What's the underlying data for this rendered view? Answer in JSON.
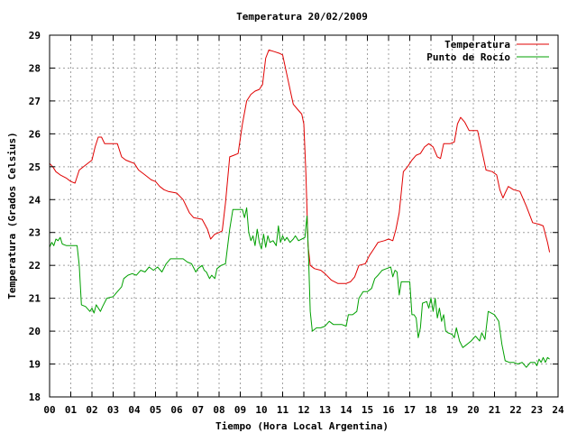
{
  "chart_data": {
    "type": "line",
    "title": "Temperatura 20/02/2009",
    "xlabel": "Tiempo (Hora Local Argentina)",
    "ylabel": "Temperatura (Grados Celsius)",
    "xlim": [
      0,
      24
    ],
    "ylim": [
      18,
      29
    ],
    "grid": true,
    "legend_position": "top-right",
    "x_ticks": [
      "00",
      "01",
      "02",
      "03",
      "04",
      "05",
      "06",
      "07",
      "08",
      "09",
      "10",
      "11",
      "12",
      "13",
      "14",
      "15",
      "16",
      "17",
      "18",
      "19",
      "20",
      "21",
      "22",
      "23",
      "24"
    ],
    "y_ticks": [
      "18",
      "19",
      "20",
      "21",
      "22",
      "23",
      "24",
      "25",
      "26",
      "27",
      "28",
      "29"
    ],
    "series": [
      {
        "name": "Temperatura",
        "color": "#e00000",
        "points": [
          [
            0.0,
            25.1
          ],
          [
            0.15,
            25.0
          ],
          [
            0.3,
            24.85
          ],
          [
            0.5,
            24.75
          ],
          [
            0.8,
            24.65
          ],
          [
            1.0,
            24.55
          ],
          [
            1.2,
            24.5
          ],
          [
            1.4,
            24.9
          ],
          [
            1.7,
            25.05
          ],
          [
            2.0,
            25.2
          ],
          [
            2.15,
            25.6
          ],
          [
            2.3,
            25.9
          ],
          [
            2.45,
            25.9
          ],
          [
            2.6,
            25.7
          ],
          [
            3.0,
            25.7
          ],
          [
            3.2,
            25.7
          ],
          [
            3.4,
            25.3
          ],
          [
            3.6,
            25.2
          ],
          [
            3.8,
            25.15
          ],
          [
            4.0,
            25.1
          ],
          [
            4.2,
            24.9
          ],
          [
            4.5,
            24.75
          ],
          [
            4.8,
            24.6
          ],
          [
            5.0,
            24.55
          ],
          [
            5.2,
            24.4
          ],
          [
            5.4,
            24.3
          ],
          [
            5.6,
            24.25
          ],
          [
            6.0,
            24.2
          ],
          [
            6.3,
            24.0
          ],
          [
            6.6,
            23.6
          ],
          [
            6.8,
            23.45
          ],
          [
            7.2,
            23.4
          ],
          [
            7.45,
            23.1
          ],
          [
            7.6,
            22.8
          ],
          [
            7.8,
            22.95
          ],
          [
            8.0,
            23.0
          ],
          [
            8.15,
            23.05
          ],
          [
            8.3,
            23.9
          ],
          [
            8.5,
            25.3
          ],
          [
            8.7,
            25.35
          ],
          [
            8.9,
            25.4
          ],
          [
            9.1,
            26.3
          ],
          [
            9.3,
            27.0
          ],
          [
            9.5,
            27.2
          ],
          [
            9.7,
            27.3
          ],
          [
            9.9,
            27.35
          ],
          [
            10.05,
            27.5
          ],
          [
            10.2,
            28.3
          ],
          [
            10.35,
            28.55
          ],
          [
            10.6,
            28.5
          ],
          [
            10.85,
            28.45
          ],
          [
            11.0,
            28.4
          ],
          [
            11.2,
            27.8
          ],
          [
            11.4,
            27.2
          ],
          [
            11.5,
            26.9
          ],
          [
            11.7,
            26.75
          ],
          [
            11.9,
            26.6
          ],
          [
            12.0,
            26.3
          ],
          [
            12.1,
            24.8
          ],
          [
            12.2,
            22.6
          ],
          [
            12.3,
            22.0
          ],
          [
            12.5,
            21.9
          ],
          [
            12.8,
            21.85
          ],
          [
            13.0,
            21.75
          ],
          [
            13.3,
            21.55
          ],
          [
            13.6,
            21.45
          ],
          [
            14.0,
            21.45
          ],
          [
            14.2,
            21.5
          ],
          [
            14.4,
            21.65
          ],
          [
            14.6,
            22.0
          ],
          [
            14.9,
            22.05
          ],
          [
            15.1,
            22.3
          ],
          [
            15.3,
            22.5
          ],
          [
            15.5,
            22.7
          ],
          [
            15.8,
            22.75
          ],
          [
            16.0,
            22.8
          ],
          [
            16.2,
            22.75
          ],
          [
            16.35,
            23.1
          ],
          [
            16.5,
            23.6
          ],
          [
            16.7,
            24.85
          ],
          [
            16.9,
            25.0
          ],
          [
            17.1,
            25.2
          ],
          [
            17.3,
            25.35
          ],
          [
            17.5,
            25.4
          ],
          [
            17.7,
            25.6
          ],
          [
            17.9,
            25.7
          ],
          [
            18.1,
            25.6
          ],
          [
            18.3,
            25.3
          ],
          [
            18.45,
            25.25
          ],
          [
            18.6,
            25.7
          ],
          [
            18.9,
            25.7
          ],
          [
            19.1,
            25.75
          ],
          [
            19.25,
            26.3
          ],
          [
            19.4,
            26.5
          ],
          [
            19.6,
            26.35
          ],
          [
            19.8,
            26.1
          ],
          [
            20.2,
            26.1
          ],
          [
            20.4,
            25.5
          ],
          [
            20.6,
            24.9
          ],
          [
            20.9,
            24.85
          ],
          [
            21.1,
            24.75
          ],
          [
            21.25,
            24.3
          ],
          [
            21.4,
            24.05
          ],
          [
            21.5,
            24.2
          ],
          [
            21.65,
            24.4
          ],
          [
            21.9,
            24.3
          ],
          [
            22.2,
            24.25
          ],
          [
            22.5,
            23.8
          ],
          [
            22.8,
            23.3
          ],
          [
            23.1,
            23.25
          ],
          [
            23.3,
            23.2
          ],
          [
            23.5,
            22.7
          ],
          [
            23.6,
            22.4
          ]
        ]
      },
      {
        "name": "Punto de Rocío",
        "color": "#00a000",
        "points": [
          [
            0.0,
            22.55
          ],
          [
            0.1,
            22.7
          ],
          [
            0.2,
            22.6
          ],
          [
            0.3,
            22.8
          ],
          [
            0.4,
            22.75
          ],
          [
            0.5,
            22.85
          ],
          [
            0.6,
            22.65
          ],
          [
            0.8,
            22.6
          ],
          [
            1.0,
            22.6
          ],
          [
            1.3,
            22.6
          ],
          [
            1.4,
            22.0
          ],
          [
            1.5,
            20.8
          ],
          [
            1.7,
            20.75
          ],
          [
            1.9,
            20.6
          ],
          [
            2.0,
            20.7
          ],
          [
            2.1,
            20.55
          ],
          [
            2.2,
            20.8
          ],
          [
            2.4,
            20.6
          ],
          [
            2.5,
            20.75
          ],
          [
            2.7,
            21.0
          ],
          [
            3.0,
            21.05
          ],
          [
            3.2,
            21.2
          ],
          [
            3.4,
            21.35
          ],
          [
            3.5,
            21.6
          ],
          [
            3.7,
            21.7
          ],
          [
            3.9,
            21.75
          ],
          [
            4.1,
            21.7
          ],
          [
            4.3,
            21.85
          ],
          [
            4.5,
            21.8
          ],
          [
            4.7,
            21.95
          ],
          [
            4.9,
            21.85
          ],
          [
            5.1,
            21.95
          ],
          [
            5.3,
            21.8
          ],
          [
            5.5,
            22.05
          ],
          [
            5.7,
            22.2
          ],
          [
            5.9,
            22.2
          ],
          [
            6.1,
            22.2
          ],
          [
            6.3,
            22.2
          ],
          [
            6.5,
            22.1
          ],
          [
            6.7,
            22.05
          ],
          [
            6.9,
            21.8
          ],
          [
            7.0,
            21.9
          ],
          [
            7.2,
            22.0
          ],
          [
            7.3,
            21.85
          ],
          [
            7.4,
            21.8
          ],
          [
            7.55,
            21.6
          ],
          [
            7.65,
            21.7
          ],
          [
            7.8,
            21.6
          ],
          [
            7.9,
            21.9
          ],
          [
            8.1,
            22.0
          ],
          [
            8.3,
            22.05
          ],
          [
            8.5,
            23.1
          ],
          [
            8.65,
            23.7
          ],
          [
            8.9,
            23.7
          ],
          [
            9.1,
            23.7
          ],
          [
            9.2,
            23.45
          ],
          [
            9.3,
            23.75
          ],
          [
            9.4,
            23.0
          ],
          [
            9.5,
            22.75
          ],
          [
            9.6,
            22.9
          ],
          [
            9.7,
            22.6
          ],
          [
            9.8,
            23.1
          ],
          [
            9.9,
            22.7
          ],
          [
            10.0,
            22.5
          ],
          [
            10.1,
            22.95
          ],
          [
            10.2,
            22.55
          ],
          [
            10.3,
            22.9
          ],
          [
            10.4,
            22.7
          ],
          [
            10.55,
            22.75
          ],
          [
            10.7,
            22.6
          ],
          [
            10.8,
            23.2
          ],
          [
            10.9,
            22.7
          ],
          [
            11.0,
            22.9
          ],
          [
            11.1,
            22.75
          ],
          [
            11.2,
            22.85
          ],
          [
            11.35,
            22.7
          ],
          [
            11.5,
            22.8
          ],
          [
            11.6,
            22.9
          ],
          [
            11.75,
            22.75
          ],
          [
            11.9,
            22.8
          ],
          [
            12.05,
            22.85
          ],
          [
            12.15,
            23.5
          ],
          [
            12.22,
            22.3
          ],
          [
            12.3,
            20.6
          ],
          [
            12.4,
            20.0
          ],
          [
            12.6,
            20.1
          ],
          [
            12.8,
            20.1
          ],
          [
            13.0,
            20.15
          ],
          [
            13.2,
            20.3
          ],
          [
            13.4,
            20.2
          ],
          [
            13.6,
            20.2
          ],
          [
            13.8,
            20.2
          ],
          [
            14.0,
            20.15
          ],
          [
            14.1,
            20.5
          ],
          [
            14.3,
            20.5
          ],
          [
            14.5,
            20.6
          ],
          [
            14.6,
            21.0
          ],
          [
            14.8,
            21.2
          ],
          [
            15.0,
            21.2
          ],
          [
            15.2,
            21.3
          ],
          [
            15.35,
            21.6
          ],
          [
            15.5,
            21.7
          ],
          [
            15.7,
            21.85
          ],
          [
            15.9,
            21.9
          ],
          [
            16.1,
            21.95
          ],
          [
            16.2,
            21.65
          ],
          [
            16.3,
            21.85
          ],
          [
            16.4,
            21.8
          ],
          [
            16.5,
            21.1
          ],
          [
            16.6,
            21.5
          ],
          [
            16.8,
            21.5
          ],
          [
            17.0,
            21.5
          ],
          [
            17.1,
            20.5
          ],
          [
            17.2,
            20.5
          ],
          [
            17.3,
            20.4
          ],
          [
            17.4,
            19.8
          ],
          [
            17.5,
            20.1
          ],
          [
            17.6,
            20.85
          ],
          [
            17.8,
            20.9
          ],
          [
            17.9,
            20.7
          ],
          [
            18.0,
            21.0
          ],
          [
            18.1,
            20.6
          ],
          [
            18.2,
            21.0
          ],
          [
            18.3,
            20.4
          ],
          [
            18.4,
            20.7
          ],
          [
            18.5,
            20.3
          ],
          [
            18.6,
            20.5
          ],
          [
            18.7,
            20.0
          ],
          [
            18.8,
            19.95
          ],
          [
            19.0,
            19.9
          ],
          [
            19.1,
            19.8
          ],
          [
            19.2,
            20.1
          ],
          [
            19.35,
            19.7
          ],
          [
            19.5,
            19.5
          ],
          [
            19.7,
            19.6
          ],
          [
            19.9,
            19.7
          ],
          [
            20.1,
            19.85
          ],
          [
            20.3,
            19.7
          ],
          [
            20.4,
            19.95
          ],
          [
            20.55,
            19.75
          ],
          [
            20.7,
            20.6
          ],
          [
            21.0,
            20.5
          ],
          [
            21.2,
            20.3
          ],
          [
            21.35,
            19.6
          ],
          [
            21.5,
            19.1
          ],
          [
            21.7,
            19.05
          ],
          [
            21.9,
            19.05
          ],
          [
            22.1,
            19.0
          ],
          [
            22.3,
            19.05
          ],
          [
            22.5,
            18.9
          ],
          [
            22.7,
            19.05
          ],
          [
            22.9,
            19.05
          ],
          [
            23.0,
            18.95
          ],
          [
            23.1,
            19.15
          ],
          [
            23.2,
            19.05
          ],
          [
            23.3,
            19.2
          ],
          [
            23.4,
            19.05
          ],
          [
            23.5,
            19.2
          ],
          [
            23.6,
            19.15
          ]
        ]
      }
    ]
  }
}
